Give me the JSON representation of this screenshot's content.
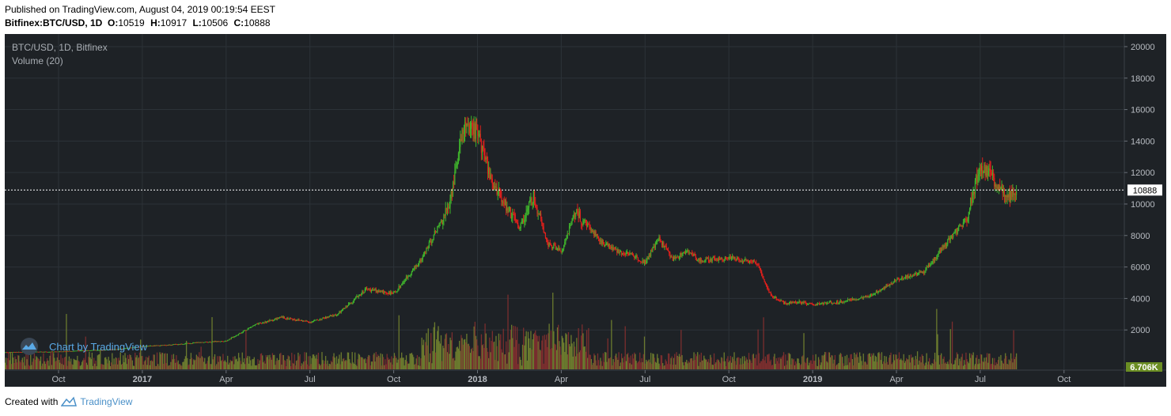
{
  "header": {
    "published": "Published on TradingView.com, August 04, 2019 00:19:54 EEST",
    "symbol": "Bitfinex:BTC/USD, 1D",
    "o_label": "O:",
    "o": "10519",
    "h_label": "H:",
    "h": "10917",
    "l_label": "L:",
    "l": "10506",
    "c_label": "C:",
    "c": "10888"
  },
  "legend": {
    "title": "BTC/USD, 1D, Bitfinex",
    "volume": "Volume (20)"
  },
  "watermark": {
    "text": "Chart by TradingView"
  },
  "footer": {
    "created": "Created with",
    "brand": "TradingView"
  },
  "colors": {
    "background": "#1e2226",
    "grid": "#2c3238",
    "up": "#3fb22c",
    "down": "#e0201c",
    "price_line": "#ffffff",
    "volume_up": "#6b7a2e",
    "volume_down": "#7a2e2e"
  },
  "chart_data": {
    "type": "candlestick",
    "title": "BTC/USD, 1D, Bitfinex",
    "y_axis": {
      "ticks": [
        "20000",
        "18000",
        "16000",
        "14000",
        "12000",
        "10000",
        "8000",
        "6000",
        "4000",
        "2000"
      ],
      "ylim": [
        0,
        20500
      ]
    },
    "x_axis": {
      "ticks": [
        {
          "label": "Oct",
          "t": 0,
          "bold": false
        },
        {
          "label": "2017",
          "t": 3,
          "bold": true
        },
        {
          "label": "Apr",
          "t": 6,
          "bold": false
        },
        {
          "label": "Jul",
          "t": 9,
          "bold": false
        },
        {
          "label": "Oct",
          "t": 12,
          "bold": false
        },
        {
          "label": "2018",
          "t": 15,
          "bold": true
        },
        {
          "label": "Apr",
          "t": 18,
          "bold": false
        },
        {
          "label": "Jul",
          "t": 21,
          "bold": false
        },
        {
          "label": "Oct",
          "t": 24,
          "bold": false
        },
        {
          "label": "2019",
          "t": 27,
          "bold": true
        },
        {
          "label": "Apr",
          "t": 30,
          "bold": false
        },
        {
          "label": "Jul",
          "t": 33,
          "bold": false
        },
        {
          "label": "Oct",
          "t": 36,
          "bold": false
        }
      ]
    },
    "last_price": {
      "label": "10888",
      "value": 10888
    },
    "last_volume": {
      "label": "6.706K"
    },
    "series": {
      "name": "BTC/USD",
      "x_months_since_oct_2016": [
        -3,
        -2,
        -1,
        0,
        1,
        2,
        3,
        4,
        5,
        6,
        7,
        8,
        9,
        10,
        11,
        12,
        13,
        14,
        14.5,
        15,
        15.5,
        16,
        16.5,
        17,
        17.5,
        18,
        18.5,
        19,
        19.5,
        20,
        20.5,
        21,
        21.5,
        22,
        22.5,
        23,
        24,
        25,
        25.5,
        26,
        26.5,
        27,
        28,
        29,
        30,
        31,
        32,
        32.5,
        33,
        33.5,
        34,
        34.3
      ],
      "close": [
        600,
        580,
        600,
        620,
        700,
        750,
        950,
        1050,
        1200,
        1300,
        2300,
        2800,
        2500,
        3000,
        4600,
        4300,
        6500,
        10000,
        15000,
        14500,
        11500,
        10000,
        8500,
        10500,
        7500,
        7000,
        9500,
        8500,
        7500,
        7000,
        6800,
        6300,
        7800,
        6500,
        7000,
        6400,
        6600,
        6300,
        4200,
        3700,
        3800,
        3600,
        3800,
        4100,
        5200,
        5700,
        8000,
        9000,
        12500,
        11500,
        10500,
        10888
      ]
    }
  }
}
